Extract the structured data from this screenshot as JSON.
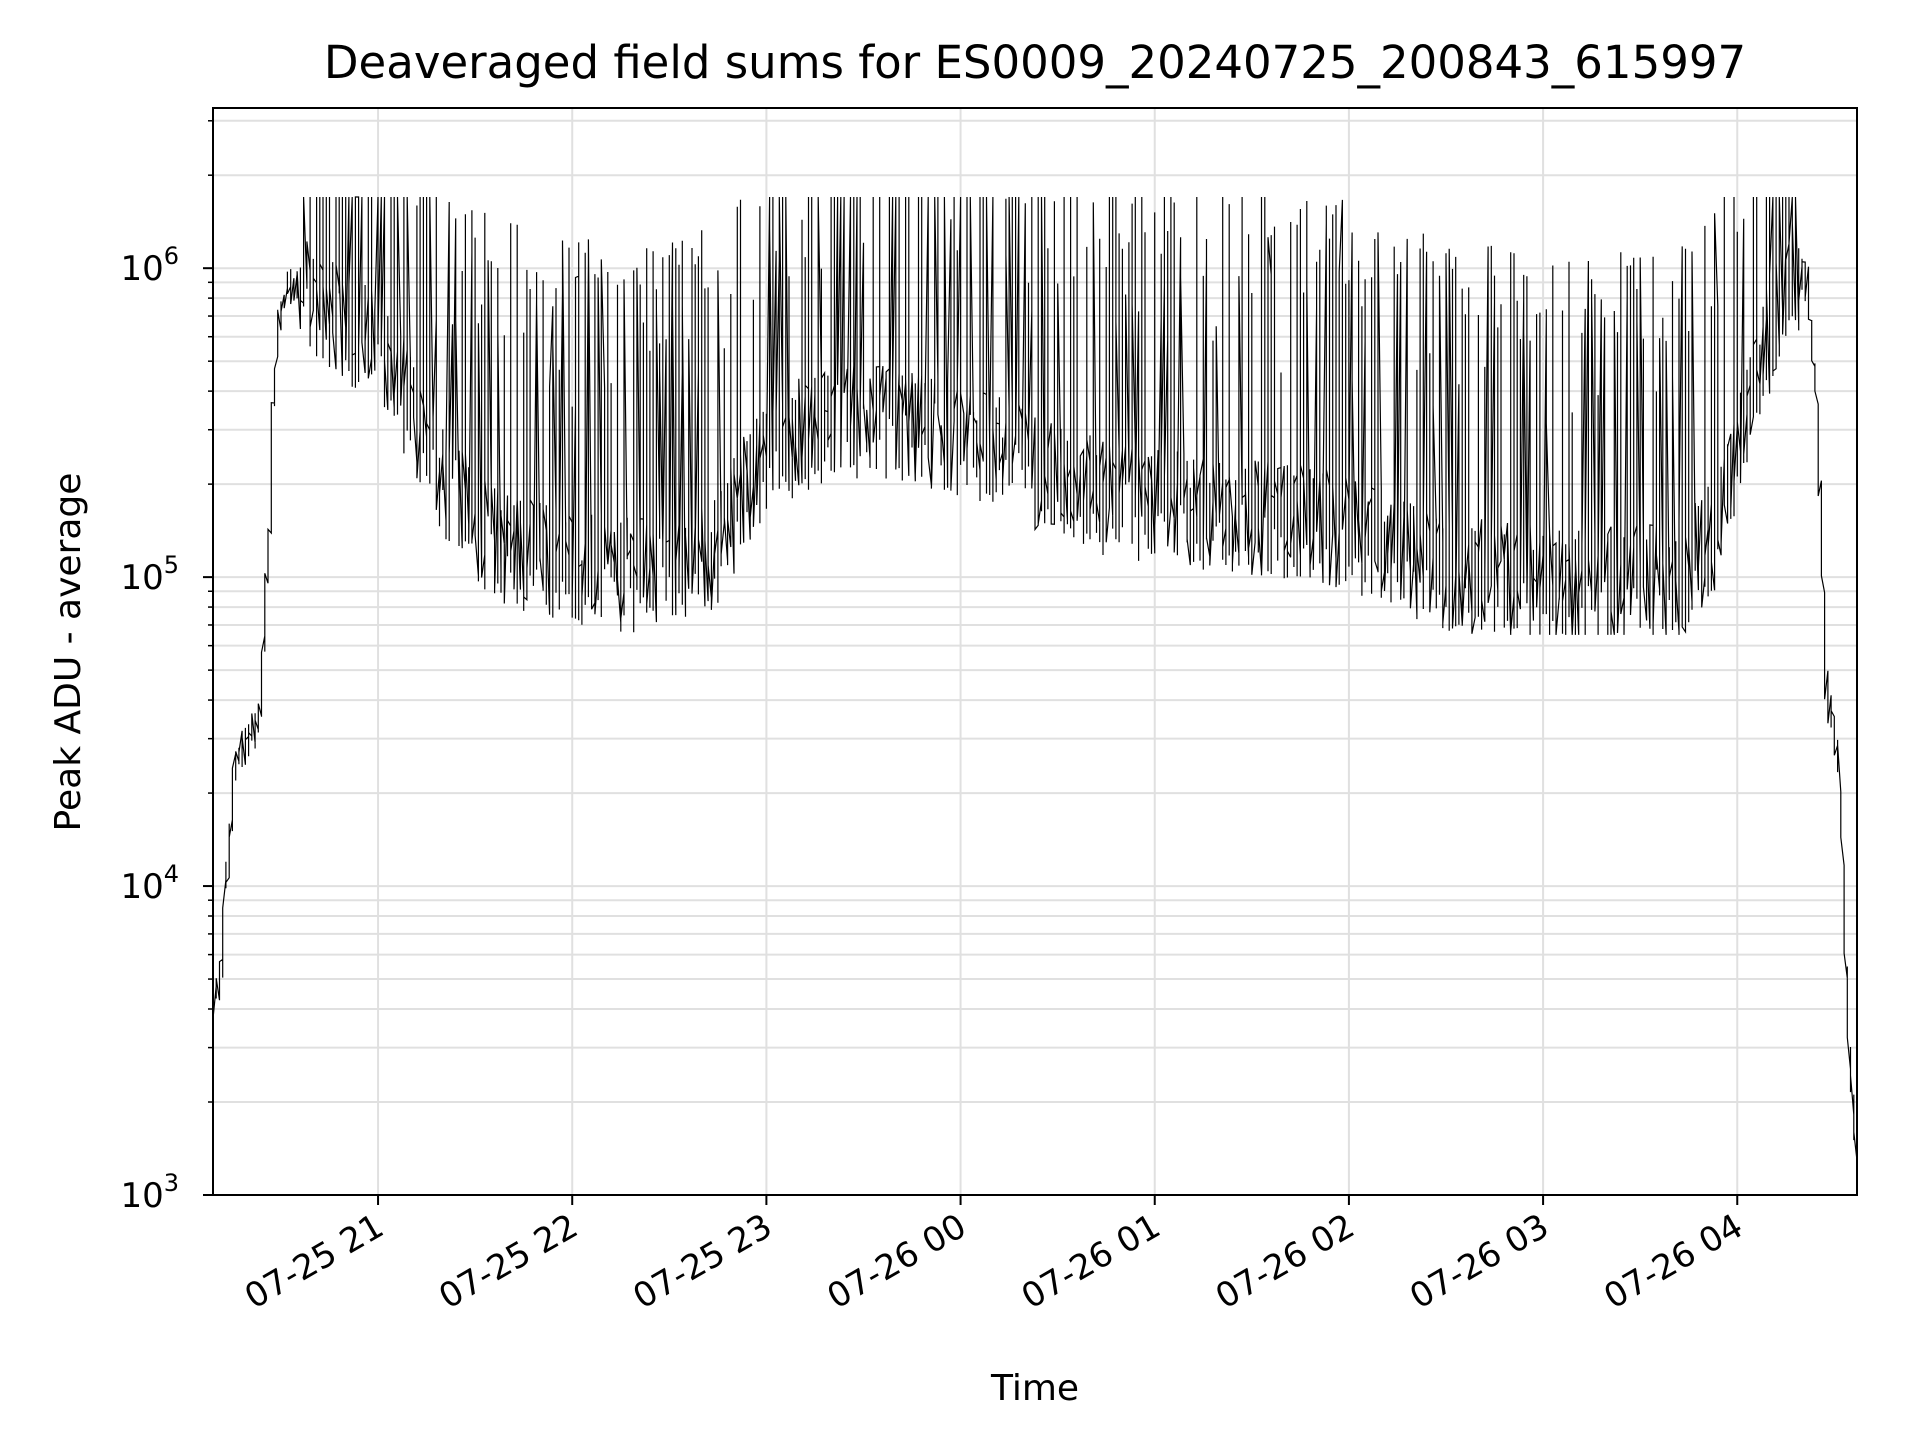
{
  "chart_data": {
    "type": "line",
    "title": "Deaveraged field sums for ES0009_20240725_200843_615997",
    "xlabel": "Time",
    "ylabel": "Peak ADU - average",
    "yscale": "log",
    "ylim": [
      1000,
      3300000
    ],
    "xlim": [
      "2024-07-25 20:09",
      "2024-07-26 04:37"
    ],
    "grid": true,
    "line_color": "#000000",
    "grid_color": "#e0e0e0",
    "x_ticks": [
      {
        "value": "2024-07-25 21:00",
        "label": "07-25 21"
      },
      {
        "value": "2024-07-25 22:00",
        "label": "07-25 22"
      },
      {
        "value": "2024-07-25 23:00",
        "label": "07-25 23"
      },
      {
        "value": "2024-07-26 00:00",
        "label": "07-26 00"
      },
      {
        "value": "2024-07-26 01:00",
        "label": "07-26 01"
      },
      {
        "value": "2024-07-26 02:00",
        "label": "07-26 02"
      },
      {
        "value": "2024-07-26 03:00",
        "label": "07-26 03"
      },
      {
        "value": "2024-07-26 04:00",
        "label": "07-26 04"
      }
    ],
    "y_ticks": [
      {
        "value": 1000,
        "base": "10",
        "exp": "3"
      },
      {
        "value": 10000,
        "base": "10",
        "exp": "4"
      },
      {
        "value": 100000,
        "base": "10",
        "exp": "5"
      },
      {
        "value": 1000000,
        "base": "10",
        "exp": "6"
      }
    ],
    "series": [
      {
        "x": [
          "2024-07-25 20:09",
          "2024-07-25 20:10",
          "2024-07-25 20:12",
          "2024-07-25 20:13",
          "2024-07-25 20:15",
          "2024-07-25 20:16",
          "2024-07-25 20:18",
          "2024-07-25 20:20",
          "2024-07-25 20:22",
          "2024-07-25 20:24",
          "2024-07-25 20:25",
          "2024-07-25 20:27",
          "2024-07-25 20:28",
          "2024-07-25 20:30",
          "2024-07-25 20:32",
          "2024-07-25 20:34",
          "2024-07-25 20:37",
          "2024-07-25 20:40",
          "2024-07-25 20:45",
          "2024-07-25 20:50",
          "2024-07-25 20:55",
          "2024-07-25 21:00",
          "2024-07-25 21:08",
          "2024-07-25 21:15",
          "2024-07-25 21:25",
          "2024-07-25 21:35",
          "2024-07-25 21:45",
          "2024-07-25 21:55",
          "2024-07-25 22:05",
          "2024-07-25 22:15",
          "2024-07-25 22:30",
          "2024-07-25 22:45",
          "2024-07-25 23:00",
          "2024-07-25 23:15",
          "2024-07-25 23:30",
          "2024-07-25 23:45",
          "2024-07-26 00:00",
          "2024-07-26 00:15",
          "2024-07-26 00:30",
          "2024-07-26 00:45",
          "2024-07-26 01:00",
          "2024-07-26 01:15",
          "2024-07-26 01:30",
          "2024-07-26 01:45",
          "2024-07-26 02:00",
          "2024-07-26 02:15",
          "2024-07-26 02:30",
          "2024-07-26 02:45",
          "2024-07-26 03:00",
          "2024-07-26 03:15",
          "2024-07-26 03:30",
          "2024-07-26 03:45",
          "2024-07-26 03:55",
          "2024-07-26 04:05",
          "2024-07-26 04:12",
          "2024-07-26 04:18",
          "2024-07-26 04:22",
          "2024-07-26 04:25",
          "2024-07-26 04:28",
          "2024-07-26 04:32",
          "2024-07-26 04:35",
          "2024-07-26 04:37"
        ],
        "y": [
          2900,
          4200,
          5200,
          9000,
          15000,
          24000,
          28000,
          30000,
          32000,
          34000,
          60000,
          150000,
          350000,
          700000,
          850000,
          900000,
          850000,
          800000,
          700000,
          650000,
          600000,
          550000,
          400000,
          250000,
          180000,
          130000,
          120000,
          110000,
          105000,
          100000,
          105000,
          120000,
          250000,
          300000,
          320000,
          300000,
          280000,
          250000,
          200000,
          180000,
          170000,
          160000,
          155000,
          150000,
          140000,
          120000,
          100000,
          100000,
          95000,
          95000,
          95000,
          100000,
          150000,
          350000,
          700000,
          1000000,
          900000,
          400000,
          45000,
          25000,
          3000,
          1400
        ],
        "peaks": [
          1800000,
          1500000,
          1400000,
          1300000,
          1600000,
          1650000,
          1600000,
          1400000,
          2350000,
          1300000,
          1250000,
          1200000,
          1550000,
          1600000,
          1650000,
          1650000,
          2450000
        ]
      }
    ]
  }
}
